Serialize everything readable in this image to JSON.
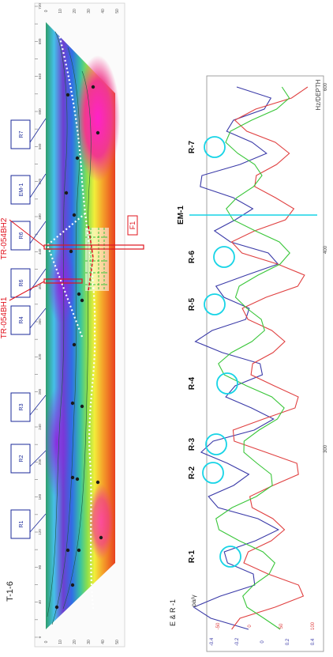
{
  "section_label": "T-1-6",
  "axis_left_label": "E & R -1",
  "axis_left_sub": "ρa/γ",
  "axis_right_label": "Hz/DEPTH",
  "ert_boxes": [
    "R1",
    "R2",
    "R3",
    "R4",
    "R6",
    "R6",
    "EM-1",
    "R7"
  ],
  "boreholes": [
    "TR-054BH1",
    "TR-054BH2"
  ],
  "fault_label": "F1",
  "vlf_markers": [
    "R-1",
    "R-2",
    "R-3",
    "R-4",
    "R-5",
    "R-6",
    "R-7"
  ],
  "em_marker": "EM-1",
  "station_ticks": [
    "0",
    "20",
    "40",
    "60",
    "80",
    "100",
    "120",
    "140",
    "160",
    "180",
    "200",
    "220",
    "240",
    "260",
    "280",
    "300",
    "320",
    "340",
    "360",
    "380",
    "400",
    "420",
    "440",
    "460",
    "480",
    "500",
    "520",
    "540",
    "560",
    "580",
    "600",
    "620",
    "640",
    "660",
    "680",
    "700",
    "720"
  ],
  "depth_ticks": [
    "0",
    "10",
    "20",
    "30",
    "40",
    "50"
  ],
  "graph_x_ticks": [
    "300",
    "400",
    "600"
  ],
  "graph_left_ticks": [
    "-0.4",
    "-0.2",
    "0",
    "0.2",
    "0.4"
  ],
  "graph_right_ticks": [
    "-50",
    "0",
    "50",
    "100"
  ],
  "colors": {
    "blue_line": "#3a3aa8",
    "red_line": "#e04040",
    "green_line": "#39c639",
    "cyan": "#17d4e6",
    "box": "#1b2a9a",
    "red": "#e0141e"
  }
}
